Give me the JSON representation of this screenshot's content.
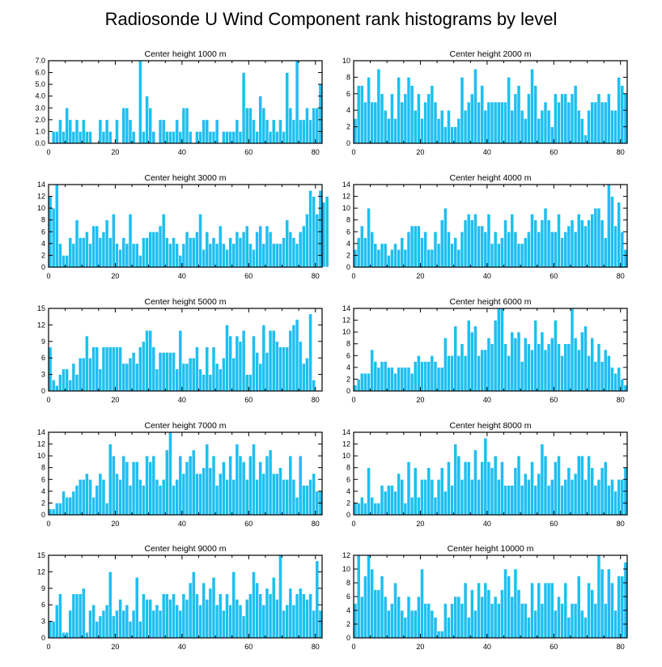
{
  "figure": {
    "title": "Radiosonde U Wind Component rank histograms by level"
  },
  "colors": {
    "bar": "#1ebff0",
    "axis": "#000000",
    "background": "#ffffff"
  },
  "chart_data": [
    {
      "type": "bar",
      "title": "Center height 1000 m",
      "xlim": [
        0,
        82
      ],
      "ylim": [
        0,
        7
      ],
      "xticks": [
        0,
        20,
        40,
        60,
        80
      ],
      "yticks": [
        0,
        1,
        2,
        3,
        4,
        5,
        6,
        7
      ],
      "ytick_labels": [
        "0.0",
        "1.0",
        "2.0",
        "3.0",
        "4.0",
        "5.0",
        "6.0",
        "7.0"
      ],
      "values": [
        0,
        1,
        1,
        2,
        1,
        3,
        2,
        1,
        2,
        1,
        2,
        1,
        1,
        0,
        0,
        2,
        1,
        2,
        1,
        0,
        2,
        0,
        3,
        3,
        2,
        1,
        0,
        7,
        1,
        4,
        3,
        1,
        0,
        2,
        2,
        1,
        1,
        1,
        2,
        1,
        3,
        3,
        1,
        0,
        1,
        1,
        2,
        2,
        1,
        1,
        2,
        0,
        1,
        1,
        1,
        1,
        2,
        1,
        6,
        3,
        3,
        2,
        1,
        4,
        3,
        2,
        1,
        2,
        1,
        2,
        1,
        6,
        3,
        2,
        7,
        2,
        2,
        3,
        2,
        3,
        3,
        5
      ]
    },
    {
      "type": "bar",
      "title": "Center height 2000 m",
      "xlim": [
        0,
        82
      ],
      "ylim": [
        0,
        10
      ],
      "xticks": [
        0,
        20,
        40,
        60,
        80
      ],
      "yticks": [
        0,
        2,
        4,
        6,
        8,
        10
      ],
      "ytick_labels": [
        "0",
        "2",
        "4",
        "6",
        "8",
        "10"
      ],
      "values": [
        3,
        7,
        7,
        5,
        8,
        5,
        5,
        9,
        6,
        4,
        3,
        6,
        3,
        8,
        5,
        6,
        8,
        7,
        4,
        6,
        3,
        5,
        6,
        7,
        5,
        3,
        4,
        2,
        4,
        2,
        2,
        3,
        8,
        4,
        5,
        6,
        9,
        5,
        7,
        4,
        5,
        5,
        5,
        5,
        5,
        5,
        8,
        4,
        6,
        7,
        4,
        3,
        6,
        9,
        7,
        3,
        4,
        5,
        4,
        2,
        6,
        5,
        6,
        6,
        5,
        6,
        7,
        4,
        3,
        1,
        4,
        5,
        5,
        6,
        5,
        5,
        6,
        4,
        4,
        8,
        7,
        6
      ]
    },
    {
      "type": "bar",
      "title": "Center height 3000 m",
      "xlim": [
        0,
        82
      ],
      "ylim": [
        0,
        14
      ],
      "xticks": [
        0,
        20,
        40,
        60,
        80
      ],
      "yticks": [
        0,
        2,
        4,
        6,
        8,
        10,
        12,
        14
      ],
      "ytick_labels": [
        "0",
        "2",
        "4",
        "6",
        "8",
        "10",
        "12",
        "14"
      ],
      "values": [
        12,
        10,
        14,
        4,
        2,
        2,
        5,
        4,
        8,
        5,
        5,
        6,
        4,
        7,
        7,
        5,
        6,
        8,
        5,
        9,
        4,
        3,
        5,
        4,
        9,
        4,
        4,
        2,
        5,
        5,
        6,
        6,
        6,
        7,
        9,
        5,
        4,
        5,
        4,
        2,
        4,
        6,
        5,
        5,
        6,
        9,
        3,
        6,
        4,
        5,
        4,
        7,
        4,
        3,
        5,
        4,
        6,
        5,
        6,
        7,
        4,
        3,
        6,
        7,
        4,
        7,
        6,
        4,
        4,
        4,
        5,
        8,
        6,
        5,
        4,
        6,
        7,
        9,
        13,
        12,
        9,
        13,
        11,
        12
      ]
    },
    {
      "type": "bar",
      "title": "Center height 4000 m",
      "xlim": [
        0,
        82
      ],
      "ylim": [
        0,
        14
      ],
      "xticks": [
        0,
        20,
        40,
        60,
        80
      ],
      "yticks": [
        0,
        2,
        4,
        6,
        8,
        10,
        12,
        14
      ],
      "ytick_labels": [
        "0",
        "2",
        "4",
        "6",
        "8",
        "10",
        "12",
        "14"
      ],
      "values": [
        3,
        5,
        7,
        5,
        10,
        6,
        4,
        3,
        4,
        4,
        2,
        3,
        4,
        3,
        5,
        3,
        6,
        7,
        7,
        7,
        5,
        6,
        3,
        3,
        6,
        4,
        8,
        10,
        6,
        4,
        5,
        3,
        6,
        8,
        9,
        8,
        9,
        7,
        7,
        6,
        9,
        4,
        6,
        4,
        5,
        8,
        6,
        9,
        6,
        4,
        4,
        5,
        6,
        9,
        8,
        6,
        8,
        10,
        8,
        6,
        6,
        9,
        5,
        6,
        7,
        8,
        6,
        9,
        8,
        7,
        8,
        9,
        10,
        10,
        8,
        5,
        14,
        12,
        7,
        11,
        6,
        3
      ]
    },
    {
      "type": "bar",
      "title": "Center height 5000 m",
      "xlim": [
        0,
        82
      ],
      "ylim": [
        0,
        15
      ],
      "xticks": [
        0,
        20,
        40,
        60,
        80
      ],
      "yticks": [
        0,
        3,
        6,
        9,
        12,
        15
      ],
      "ytick_labels": [
        "0",
        "3",
        "6",
        "9",
        "12",
        "15"
      ],
      "values": [
        8,
        2,
        1,
        3,
        4,
        4,
        2,
        5,
        3,
        6,
        6,
        10,
        6,
        8,
        8,
        4,
        8,
        8,
        8,
        8,
        8,
        8,
        5,
        5,
        6,
        7,
        5,
        8,
        9,
        11,
        11,
        8,
        4,
        7,
        7,
        7,
        7,
        7,
        4,
        11,
        5,
        5,
        6,
        6,
        8,
        4,
        3,
        8,
        3,
        8,
        5,
        4,
        6,
        12,
        10,
        6,
        10,
        9,
        11,
        3,
        3,
        10,
        7,
        5,
        12,
        7,
        11,
        11,
        9,
        8,
        8,
        8,
        11,
        12,
        13,
        9,
        5,
        6,
        14,
        2,
        0,
        0
      ]
    },
    {
      "type": "bar",
      "title": "Center height 6000 m",
      "xlim": [
        0,
        82
      ],
      "ylim": [
        0,
        14
      ],
      "xticks": [
        0,
        20,
        40,
        60,
        80
      ],
      "yticks": [
        0,
        2,
        4,
        6,
        8,
        10,
        12,
        14
      ],
      "ytick_labels": [
        "0",
        "2",
        "4",
        "6",
        "8",
        "10",
        "12",
        "14"
      ],
      "values": [
        1,
        2,
        3,
        3,
        3,
        7,
        5,
        4,
        5,
        5,
        4,
        4,
        3,
        4,
        4,
        4,
        4,
        3,
        5,
        6,
        5,
        5,
        5,
        6,
        5,
        4,
        4,
        9,
        6,
        6,
        11,
        6,
        8,
        6,
        12,
        10,
        11,
        6,
        7,
        7,
        9,
        8,
        12,
        14,
        14,
        8,
        6,
        10,
        9,
        10,
        5,
        9,
        8,
        7,
        12,
        8,
        10,
        7,
        8,
        9,
        12,
        8,
        6,
        8,
        8,
        14,
        9,
        7,
        10,
        11,
        6,
        9,
        5,
        8,
        5,
        7,
        6,
        4,
        3,
        4,
        2,
        1
      ]
    },
    {
      "type": "bar",
      "title": "Center height 7000 m",
      "xlim": [
        0,
        82
      ],
      "ylim": [
        0,
        14
      ],
      "xticks": [
        0,
        20,
        40,
        60,
        80
      ],
      "yticks": [
        0,
        2,
        4,
        6,
        8,
        10,
        12,
        14
      ],
      "ytick_labels": [
        "0",
        "2",
        "4",
        "6",
        "8",
        "10",
        "12",
        "14"
      ],
      "values": [
        1,
        1,
        2,
        2,
        4,
        3,
        3,
        4,
        5,
        6,
        6,
        7,
        6,
        3,
        5,
        7,
        6,
        2,
        12,
        10,
        7,
        6,
        10,
        9,
        5,
        9,
        9,
        6,
        5,
        10,
        9,
        10,
        6,
        5,
        6,
        11,
        14,
        5,
        6,
        10,
        7,
        9,
        10,
        11,
        7,
        7,
        8,
        12,
        8,
        10,
        5,
        7,
        9,
        6,
        10,
        6,
        12,
        10,
        9,
        6,
        10,
        12,
        6,
        9,
        7,
        10,
        11,
        7,
        7,
        8,
        6,
        6,
        10,
        6,
        3,
        10,
        5,
        5,
        6,
        7,
        4,
        4
      ]
    },
    {
      "type": "bar",
      "title": "Center height 8000 m",
      "xlim": [
        0,
        82
      ],
      "ylim": [
        0,
        14
      ],
      "xticks": [
        0,
        20,
        40,
        60,
        80
      ],
      "yticks": [
        0,
        2,
        4,
        6,
        8,
        10,
        12,
        14
      ],
      "ytick_labels": [
        "0",
        "2",
        "4",
        "6",
        "8",
        "10",
        "12",
        "14"
      ],
      "values": [
        2,
        2,
        3,
        2,
        8,
        3,
        2,
        2,
        5,
        4,
        5,
        5,
        4,
        7,
        6,
        2,
        9,
        3,
        8,
        3,
        6,
        6,
        8,
        6,
        3,
        6,
        8,
        4,
        9,
        5,
        12,
        10,
        6,
        9,
        9,
        6,
        11,
        6,
        9,
        13,
        9,
        8,
        10,
        6,
        9,
        5,
        5,
        5,
        8,
        10,
        5,
        7,
        6,
        9,
        5,
        7,
        12,
        10,
        5,
        6,
        9,
        10,
        5,
        6,
        8,
        6,
        7,
        10,
        10,
        6,
        10,
        8,
        5,
        6,
        8,
        9,
        5,
        6,
        4,
        6,
        6,
        8
      ]
    },
    {
      "type": "bar",
      "title": "Center height 9000 m",
      "xlim": [
        0,
        82
      ],
      "ylim": [
        0,
        15
      ],
      "xticks": [
        0,
        20,
        40,
        60,
        80
      ],
      "yticks": [
        0,
        3,
        6,
        9,
        12,
        15
      ],
      "ytick_labels": [
        "0",
        "3",
        "6",
        "9",
        "12",
        "15"
      ],
      "values": [
        3,
        3,
        6,
        8,
        1,
        1,
        5,
        8,
        8,
        8,
        9,
        1,
        5,
        6,
        3,
        4,
        5,
        6,
        12,
        4,
        5,
        7,
        5,
        6,
        3,
        5,
        11,
        3,
        8,
        7,
        7,
        5,
        6,
        5,
        8,
        8,
        7,
        8,
        6,
        5,
        8,
        7,
        10,
        12,
        8,
        6,
        10,
        7,
        9,
        11,
        6,
        8,
        5,
        8,
        6,
        12,
        7,
        6,
        4,
        7,
        8,
        12,
        10,
        8,
        6,
        9,
        8,
        11,
        7,
        15,
        5,
        6,
        9,
        6,
        8,
        9,
        8,
        7,
        8,
        5,
        14,
        5
      ]
    },
    {
      "type": "bar",
      "title": "Center height 10000 m",
      "xlim": [
        0,
        82
      ],
      "ylim": [
        0,
        12
      ],
      "xticks": [
        0,
        20,
        40,
        60,
        80
      ],
      "yticks": [
        0,
        2,
        4,
        6,
        8,
        10,
        12
      ],
      "ytick_labels": [
        "0",
        "2",
        "4",
        "6",
        "8",
        "10",
        "12"
      ],
      "values": [
        5,
        12,
        6,
        9,
        12,
        10,
        7,
        7,
        9,
        6,
        4,
        5,
        8,
        6,
        4,
        3,
        6,
        4,
        4,
        6,
        10,
        5,
        5,
        4,
        3,
        1,
        1,
        5,
        3,
        5,
        6,
        6,
        5,
        8,
        3,
        7,
        4,
        8,
        6,
        8,
        7,
        5,
        6,
        5,
        7,
        10,
        9,
        6,
        10,
        7,
        5,
        5,
        3,
        8,
        4,
        8,
        5,
        8,
        8,
        8,
        4,
        6,
        5,
        8,
        3,
        5,
        5,
        9,
        4,
        3,
        8,
        7,
        5,
        12,
        10,
        5,
        10,
        8,
        4,
        9,
        9,
        11
      ]
    }
  ]
}
